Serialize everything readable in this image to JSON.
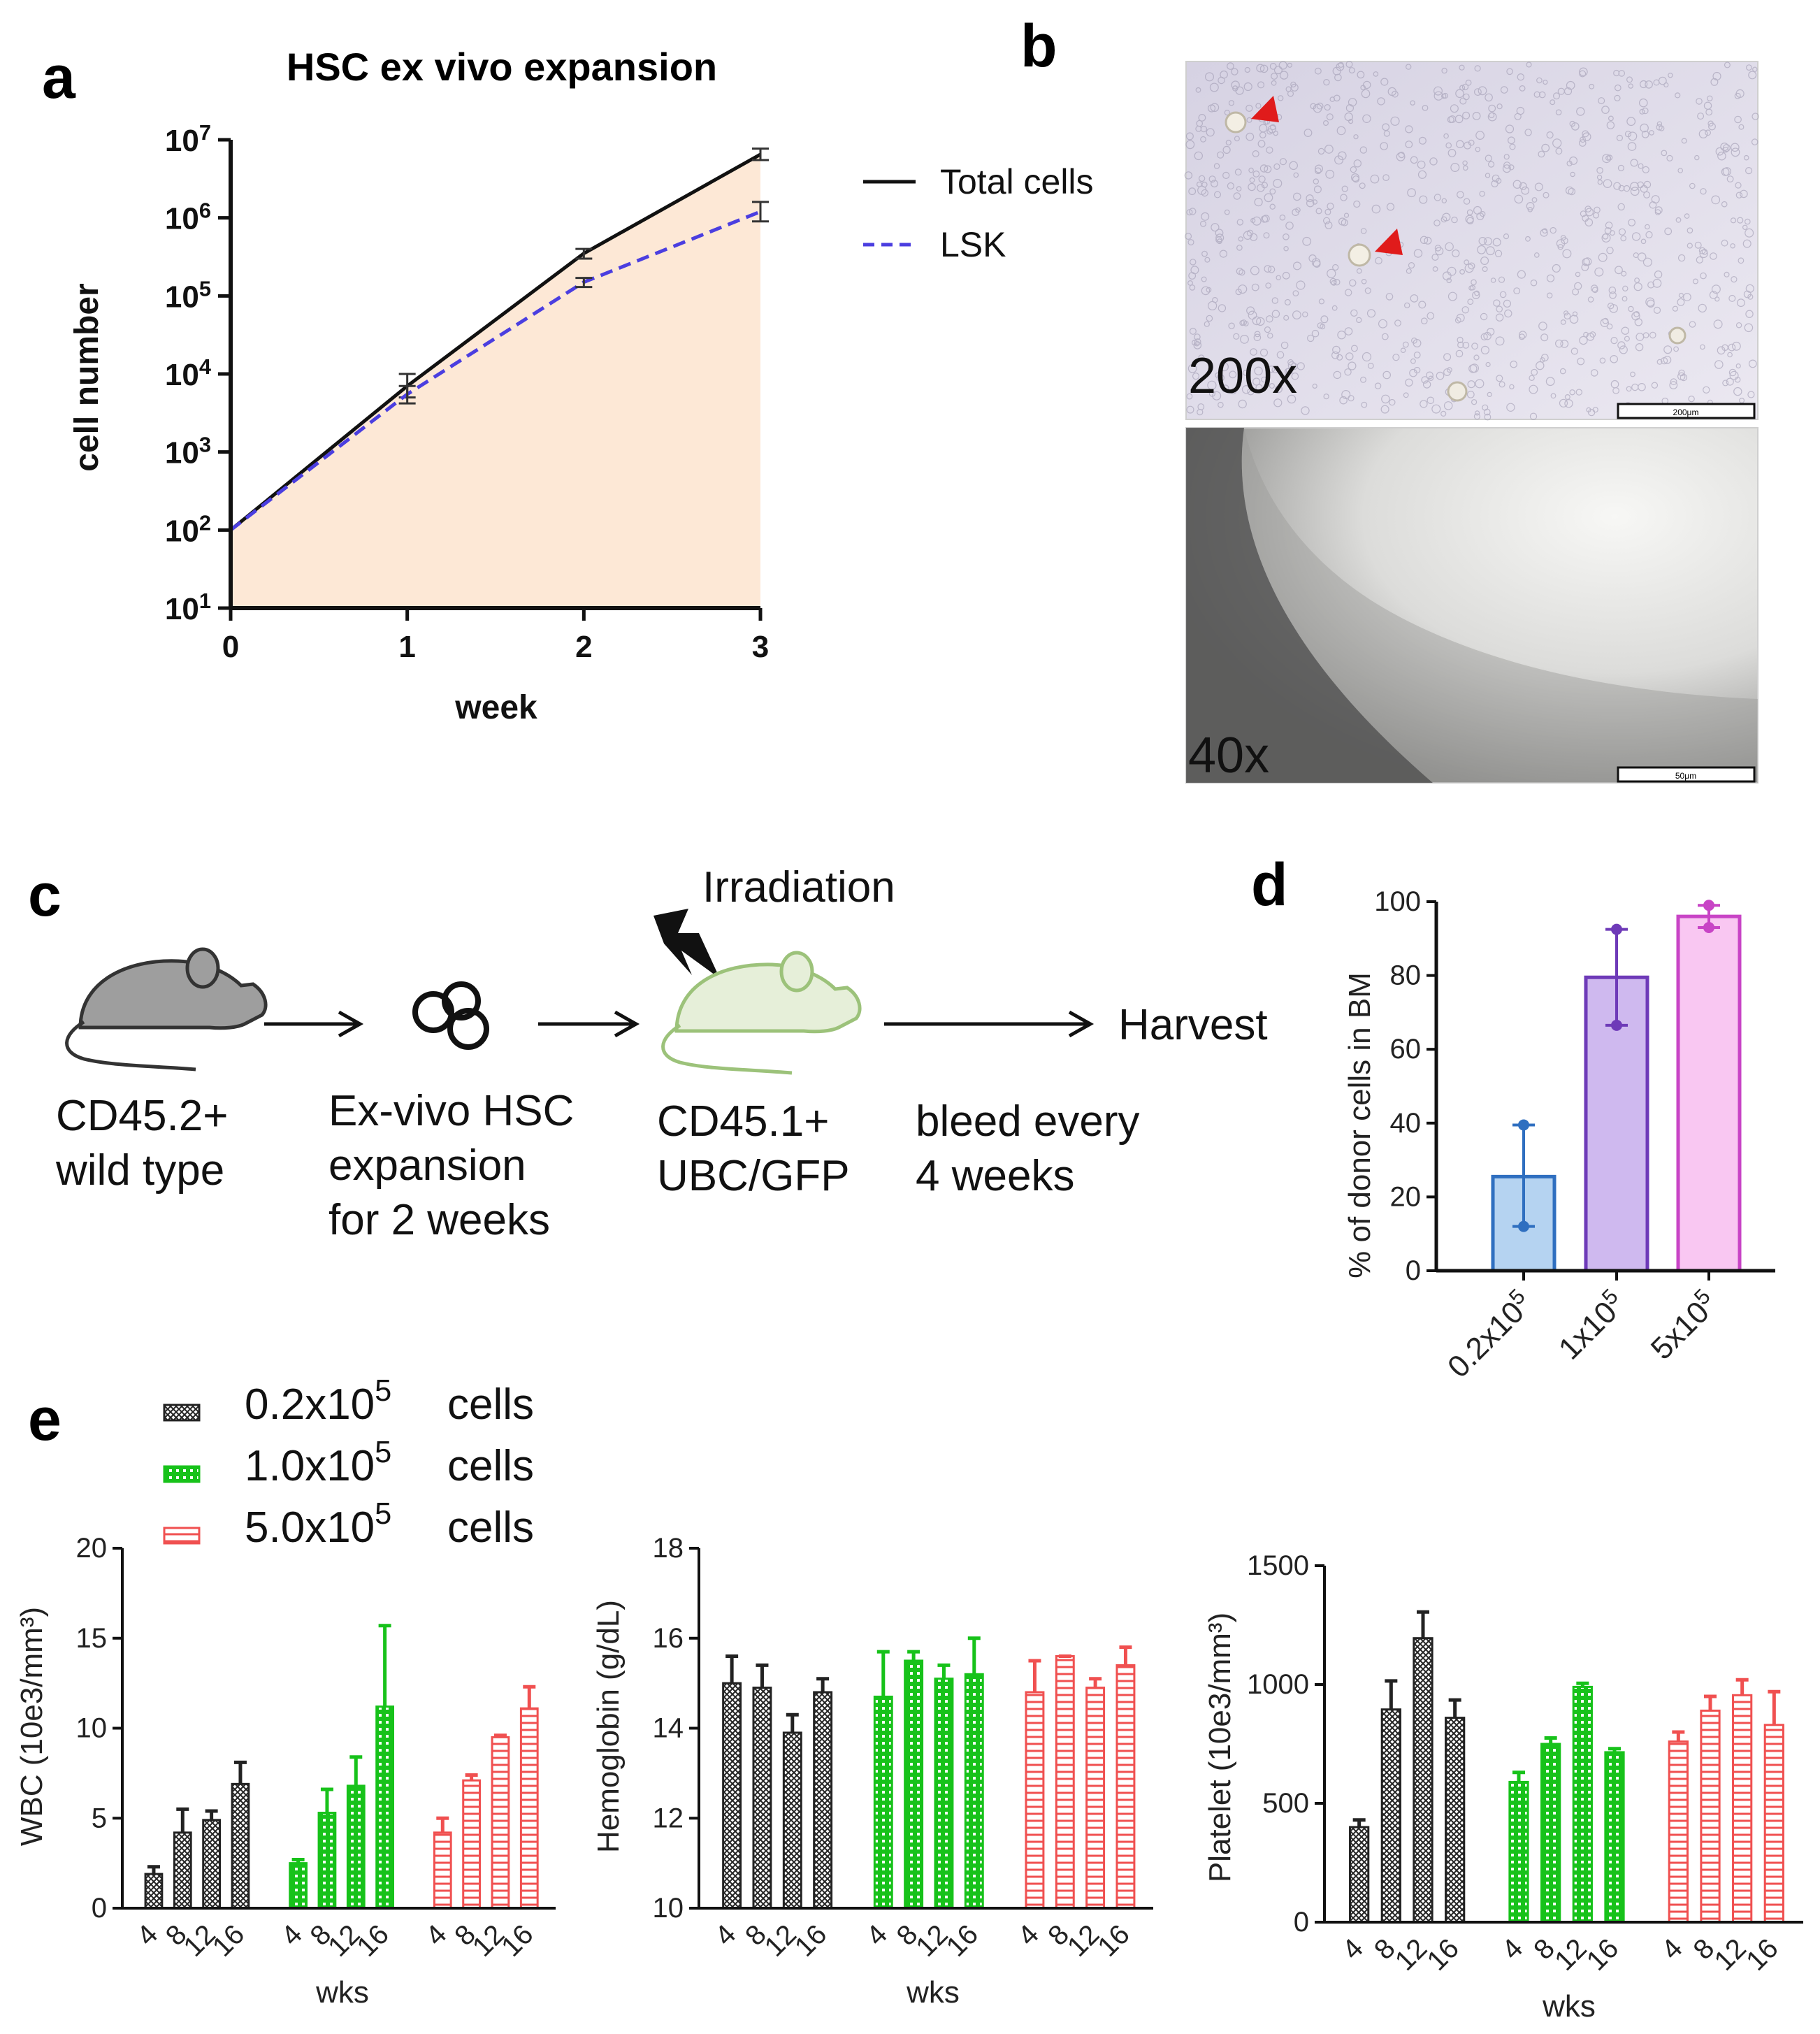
{
  "panels": {
    "a": "a",
    "b": "b",
    "c": "c",
    "d": "d",
    "e": "e"
  },
  "micro": {
    "top": "200x",
    "bottom": "40x",
    "scalebar_top": "200μm",
    "scalebar_bottom": "50μm"
  },
  "workflow": {
    "irradiation": "Irradiation",
    "harvest": "Harvest",
    "donor": [
      "CD45.2+",
      "wild type"
    ],
    "expansion": [
      "Ex-vivo HSC",
      "expansion",
      "for 2 weeks"
    ],
    "recipient": [
      "CD45.1+",
      "UBC/GFP"
    ],
    "bleed": [
      "bleed every",
      "4 weeks"
    ],
    "colors": {
      "donor_mouse": "#9e9e9e",
      "recipient_mouse": "#e6efd9",
      "recipient_outline": "#9cc27a"
    }
  },
  "legend_e": {
    "items": [
      {
        "mantissa": "0.2x10",
        "exp": "5",
        "unit": "cells",
        "color": "#222222"
      },
      {
        "mantissa": "1.0x10",
        "exp": "5",
        "unit": "cells",
        "color": "#17c21a"
      },
      {
        "mantissa": "5.0x10",
        "exp": "5",
        "unit": "cells",
        "color": "#f05050"
      }
    ]
  },
  "chart_data": [
    {
      "id": "a",
      "type": "line",
      "title": "HSC ex vivo expansion",
      "xlabel": "week",
      "ylabel": "cell number",
      "yscale": "log",
      "ylim": [
        10,
        10000000
      ],
      "x": [
        0,
        1,
        2,
        3
      ],
      "yticks": [
        {
          "base": "10",
          "exp": "1"
        },
        {
          "base": "10",
          "exp": "2"
        },
        {
          "base": "10",
          "exp": "3"
        },
        {
          "base": "10",
          "exp": "4"
        },
        {
          "base": "10",
          "exp": "5"
        },
        {
          "base": "10",
          "exp": "6"
        },
        {
          "base": "10",
          "exp": "7"
        }
      ],
      "xticks": [
        "0",
        "1",
        "2",
        "3"
      ],
      "fill_color": "#fde8d6",
      "series": [
        {
          "name": "Total cells",
          "values": [
            100,
            7000,
            350000,
            6500000
          ],
          "err": [
            [
              100,
              100
            ],
            [
              5000,
              10000
            ],
            [
              300000,
              400000
            ],
            [
              5500000,
              7700000
            ]
          ],
          "color": "#111111",
          "dash": false
        },
        {
          "name": "LSK",
          "values": [
            100,
            5500,
            150000,
            1200000
          ],
          "err": [
            [
              100,
              100
            ],
            [
              4200,
              7000
            ],
            [
              130000,
              170000
            ],
            [
              900000,
              1600000
            ]
          ],
          "color": "#4b3ee0",
          "dash": true
        }
      ]
    },
    {
      "id": "d",
      "type": "bar",
      "ylabel": "% of donor cells in BM",
      "ylim": [
        0,
        100
      ],
      "yticks": [
        "0",
        "20",
        "40",
        "60",
        "80",
        "100"
      ],
      "categories": [
        {
          "base": "0.2x10",
          "exp": "5"
        },
        {
          "base": "1x10",
          "exp": "5"
        },
        {
          "base": "5x10",
          "exp": "5"
        }
      ],
      "values": [
        25.5,
        79.5,
        96
      ],
      "err": [
        [
          12,
          39.5
        ],
        [
          66.5,
          92.5
        ],
        [
          93,
          99
        ]
      ],
      "fills": [
        "#b5d3f1",
        "#cfb9ef",
        "#f9c7f2"
      ],
      "strokes": [
        "#2f6fc0",
        "#6e3ab8",
        "#c844c6"
      ]
    },
    {
      "id": "e-wbc",
      "type": "bar",
      "ylabel": "WBC (10e3/mm³)",
      "xlabel": "wks",
      "ylim": [
        0,
        20
      ],
      "yticks": [
        "0",
        "5",
        "10",
        "15",
        "20"
      ],
      "categories": [
        "4",
        "8",
        "12",
        "16"
      ],
      "series": [
        {
          "name": "0.2x10^5 cells",
          "values": [
            1.9,
            4.2,
            4.9,
            6.9
          ],
          "err_up": [
            2.3,
            5.5,
            5.4,
            8.1
          ]
        },
        {
          "name": "1.0x10^5 cells",
          "values": [
            2.5,
            5.3,
            6.8,
            11.2
          ],
          "err_up": [
            2.7,
            6.6,
            8.4,
            15.7
          ]
        },
        {
          "name": "5.0x10^5 cells",
          "values": [
            4.2,
            7.1,
            9.5,
            11.1
          ],
          "err_up": [
            5.0,
            7.4,
            9.6,
            12.3
          ]
        }
      ]
    },
    {
      "id": "e-hgb",
      "type": "bar",
      "ylabel": "Hemoglobin (g/dL)",
      "xlabel": "wks",
      "ylim": [
        10,
        18
      ],
      "yticks": [
        "10",
        "12",
        "14",
        "16",
        "18"
      ],
      "categories": [
        "4",
        "8",
        "12",
        "16"
      ],
      "series": [
        {
          "name": "0.2x10^5 cells",
          "values": [
            15.0,
            14.9,
            13.9,
            14.8
          ],
          "err_up": [
            15.6,
            15.4,
            14.3,
            15.1
          ]
        },
        {
          "name": "1.0x10^5 cells",
          "values": [
            14.7,
            15.5,
            15.1,
            15.2
          ],
          "err_up": [
            15.7,
            15.7,
            15.4,
            16.0
          ]
        },
        {
          "name": "5.0x10^5 cells",
          "values": [
            14.8,
            15.6,
            14.9,
            15.4
          ],
          "err_up": [
            15.5,
            15.6,
            15.1,
            15.8
          ]
        }
      ]
    },
    {
      "id": "e-plt",
      "type": "bar",
      "ylabel": "Platelet (10e3/mm³)",
      "xlabel": "wks",
      "ylim": [
        0,
        1500
      ],
      "yticks": [
        "0",
        "500",
        "1000",
        "1500"
      ],
      "categories": [
        "4",
        "8",
        "12",
        "16"
      ],
      "series": [
        {
          "name": "0.2x10^5 cells",
          "values": [
            400,
            895,
            1195,
            860
          ],
          "err_up": [
            430,
            1015,
            1305,
            935
          ]
        },
        {
          "name": "1.0x10^5 cells",
          "values": [
            590,
            750,
            990,
            715
          ],
          "err_up": [
            630,
            775,
            1005,
            730
          ]
        },
        {
          "name": "5.0x10^5 cells",
          "values": [
            760,
            890,
            955,
            830
          ],
          "err_up": [
            800,
            950,
            1020,
            970
          ]
        }
      ]
    }
  ]
}
